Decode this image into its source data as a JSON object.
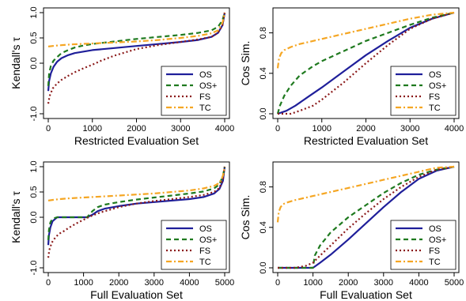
{
  "colors": {
    "OS": "#1f1f9a",
    "OS+": "#1f7a1f",
    "FS": "#8b1a1a",
    "TC": "#f5a623"
  },
  "chart_data": [
    {
      "type": "line",
      "xlabel": "Restricted Evaluation Set",
      "ylabel": "Kendall's τ",
      "xlim": [
        0,
        4000
      ],
      "ylim": [
        -1.0,
        1.0
      ],
      "xticks": [
        0,
        1000,
        2000,
        3000,
        4000
      ],
      "yticks": [
        -1.0,
        0.0,
        0.5,
        1.0
      ],
      "ytick_labels": [
        "-1.0",
        "0.0",
        "0.5",
        "1.0"
      ],
      "legend": "bottom-right",
      "series": [
        {
          "name": "OS",
          "style": "solid",
          "x": [
            0,
            20,
            60,
            120,
            200,
            300,
            450,
            600,
            800,
            1000,
            1500,
            2000,
            2500,
            3000,
            3400,
            3700,
            3850,
            3950,
            4000
          ],
          "y": [
            -0.55,
            -0.35,
            -0.2,
            -0.07,
            0.03,
            0.1,
            0.16,
            0.2,
            0.23,
            0.26,
            0.3,
            0.34,
            0.38,
            0.42,
            0.46,
            0.52,
            0.6,
            0.75,
            1.0
          ]
        },
        {
          "name": "OS+",
          "style": "dashed",
          "x": [
            0,
            20,
            60,
            120,
            200,
            300,
            450,
            600,
            800,
            1000,
            1500,
            2000,
            2500,
            3000,
            3400,
            3700,
            3850,
            3950,
            4000
          ],
          "y": [
            -0.45,
            -0.2,
            -0.05,
            0.05,
            0.12,
            0.2,
            0.26,
            0.31,
            0.35,
            0.38,
            0.43,
            0.48,
            0.52,
            0.56,
            0.6,
            0.65,
            0.72,
            0.85,
            1.0
          ]
        },
        {
          "name": "FS",
          "style": "dotted",
          "x": [
            0,
            30,
            100,
            200,
            300,
            450,
            600,
            800,
            1000,
            1200,
            1500,
            2000,
            2500,
            3000,
            3400,
            3700,
            3850,
            3950,
            4000
          ],
          "y": [
            -0.8,
            -0.65,
            -0.5,
            -0.4,
            -0.33,
            -0.25,
            -0.18,
            -0.1,
            -0.03,
            0.05,
            0.15,
            0.28,
            0.36,
            0.42,
            0.47,
            0.52,
            0.6,
            0.75,
            1.0
          ]
        },
        {
          "name": "TC",
          "style": "dashdot",
          "x": [
            0,
            200,
            500,
            1000,
            1500,
            2000,
            2500,
            3000,
            3400,
            3700,
            3850,
            3950,
            4000
          ],
          "y": [
            0.33,
            0.35,
            0.37,
            0.39,
            0.41,
            0.43,
            0.46,
            0.5,
            0.54,
            0.59,
            0.65,
            0.8,
            1.0
          ]
        }
      ]
    },
    {
      "type": "line",
      "xlabel": "Restricted Evaluation Set",
      "ylabel": "Cos Sim.",
      "xlim": [
        0,
        4000
      ],
      "ylim": [
        0.0,
        1.0
      ],
      "xticks": [
        0,
        1000,
        2000,
        3000,
        4000
      ],
      "yticks": [
        0.0,
        0.4,
        0.8
      ],
      "ytick_labels": [
        "0.0",
        "0.4",
        "0.8"
      ],
      "legend": "bottom-right",
      "series": [
        {
          "name": "OS",
          "style": "solid",
          "x": [
            0,
            200,
            400,
            700,
            1000,
            1500,
            2000,
            2500,
            3000,
            3500,
            4000
          ],
          "y": [
            0.0,
            0.03,
            0.08,
            0.17,
            0.26,
            0.42,
            0.58,
            0.72,
            0.85,
            0.94,
            1.0
          ]
        },
        {
          "name": "OS+",
          "style": "dashed",
          "x": [
            0,
            50,
            150,
            300,
            500,
            800,
            1000,
            1500,
            2000,
            2500,
            3000,
            3500,
            4000
          ],
          "y": [
            0.0,
            0.08,
            0.18,
            0.28,
            0.38,
            0.47,
            0.52,
            0.62,
            0.72,
            0.8,
            0.88,
            0.95,
            1.0
          ]
        },
        {
          "name": "FS",
          "style": "dotted",
          "x": [
            0,
            300,
            500,
            800,
            1000,
            1500,
            2000,
            2500,
            3000,
            3500,
            4000
          ],
          "y": [
            0.0,
            0.0,
            0.03,
            0.08,
            0.14,
            0.31,
            0.5,
            0.68,
            0.84,
            0.94,
            1.0
          ]
        },
        {
          "name": "TC",
          "style": "dashdot",
          "x": [
            0,
            30,
            80,
            150,
            300,
            500,
            1000,
            1500,
            2000,
            2500,
            3000,
            3500,
            4000
          ],
          "y": [
            0.45,
            0.55,
            0.6,
            0.63,
            0.66,
            0.69,
            0.74,
            0.79,
            0.84,
            0.89,
            0.94,
            0.98,
            1.0
          ]
        }
      ]
    },
    {
      "type": "line",
      "xlabel": "Full Evaluation Set",
      "ylabel": "Kendall's τ",
      "xlim": [
        0,
        5000
      ],
      "ylim": [
        -1.0,
        1.0
      ],
      "xticks": [
        0,
        1000,
        2000,
        3000,
        4000,
        5000
      ],
      "yticks": [
        -1.0,
        0.0,
        0.5,
        1.0
      ],
      "ytick_labels": [
        "-1.0",
        "0.0",
        "0.5",
        "1.0"
      ],
      "legend": "bottom-right",
      "series": [
        {
          "name": "OS",
          "style": "solid",
          "x": [
            0,
            20,
            60,
            120,
            250,
            1100,
            1250,
            1400,
            1600,
            2000,
            2500,
            3000,
            3500,
            4000,
            4400,
            4700,
            4850,
            4950,
            5000
          ],
          "y": [
            -0.55,
            -0.35,
            -0.2,
            -0.08,
            0.0,
            0.0,
            0.05,
            0.12,
            0.17,
            0.22,
            0.27,
            0.3,
            0.33,
            0.36,
            0.4,
            0.47,
            0.56,
            0.72,
            1.0
          ]
        },
        {
          "name": "OS+",
          "style": "dashed",
          "x": [
            0,
            20,
            60,
            120,
            250,
            1100,
            1250,
            1400,
            1600,
            2000,
            2500,
            3000,
            3500,
            4000,
            4400,
            4700,
            4850,
            4950,
            5000
          ],
          "y": [
            -0.45,
            -0.25,
            -0.1,
            -0.03,
            0.0,
            0.0,
            0.12,
            0.2,
            0.25,
            0.3,
            0.35,
            0.39,
            0.43,
            0.47,
            0.51,
            0.57,
            0.65,
            0.82,
            1.0
          ]
        },
        {
          "name": "FS",
          "style": "dotted",
          "x": [
            0,
            30,
            100,
            200,
            300,
            450,
            600,
            800,
            1000,
            1200,
            1500,
            2000,
            2500,
            3000,
            3500,
            4000,
            4400,
            4700,
            4850,
            4950,
            5000
          ],
          "y": [
            -0.8,
            -0.65,
            -0.5,
            -0.4,
            -0.33,
            -0.27,
            -0.2,
            -0.12,
            -0.05,
            0.02,
            0.1,
            0.2,
            0.27,
            0.32,
            0.36,
            0.4,
            0.44,
            0.5,
            0.58,
            0.75,
            1.0
          ]
        },
        {
          "name": "TC",
          "style": "dashdot",
          "x": [
            0,
            200,
            500,
            1000,
            1500,
            2000,
            2500,
            3000,
            3500,
            4000,
            4400,
            4700,
            4850,
            4950,
            5000
          ],
          "y": [
            0.33,
            0.35,
            0.37,
            0.39,
            0.41,
            0.43,
            0.45,
            0.47,
            0.5,
            0.53,
            0.57,
            0.62,
            0.68,
            0.82,
            1.0
          ]
        }
      ]
    },
    {
      "type": "line",
      "xlabel": "Full Evaluation Set",
      "ylabel": "Cos Sim.",
      "xlim": [
        0,
        5000
      ],
      "ylim": [
        0.0,
        1.0
      ],
      "xticks": [
        0,
        1000,
        2000,
        3000,
        4000,
        5000
      ],
      "yticks": [
        0.0,
        0.4,
        0.8
      ],
      "ytick_labels": [
        "0.0",
        "0.4",
        "0.8"
      ],
      "legend": "bottom-right",
      "series": [
        {
          "name": "OS",
          "style": "solid",
          "x": [
            0,
            1000,
            1200,
            1500,
            2000,
            2500,
            3000,
            3500,
            4000,
            4500,
            5000
          ],
          "y": [
            0.0,
            0.0,
            0.05,
            0.13,
            0.28,
            0.44,
            0.6,
            0.75,
            0.88,
            0.96,
            1.0
          ]
        },
        {
          "name": "OS+",
          "style": "dashed",
          "x": [
            0,
            1000,
            1050,
            1200,
            1500,
            2000,
            2500,
            3000,
            3500,
            4000,
            4500,
            5000
          ],
          "y": [
            0.0,
            0.0,
            0.12,
            0.22,
            0.35,
            0.5,
            0.62,
            0.74,
            0.84,
            0.92,
            0.97,
            1.0
          ]
        },
        {
          "name": "FS",
          "style": "dotted",
          "x": [
            0,
            500,
            800,
            1000,
            1200,
            1500,
            2000,
            2500,
            3000,
            3500,
            4000,
            4500,
            5000
          ],
          "y": [
            0.0,
            0.0,
            0.02,
            0.05,
            0.12,
            0.22,
            0.39,
            0.54,
            0.68,
            0.8,
            0.9,
            0.97,
            1.0
          ]
        },
        {
          "name": "TC",
          "style": "dashdot",
          "x": [
            0,
            30,
            80,
            150,
            300,
            500,
            1000,
            1500,
            2000,
            2500,
            3000,
            3500,
            4000,
            4500,
            5000
          ],
          "y": [
            0.45,
            0.55,
            0.6,
            0.63,
            0.65,
            0.67,
            0.71,
            0.75,
            0.79,
            0.83,
            0.87,
            0.91,
            0.95,
            0.99,
            1.0
          ]
        }
      ]
    }
  ]
}
